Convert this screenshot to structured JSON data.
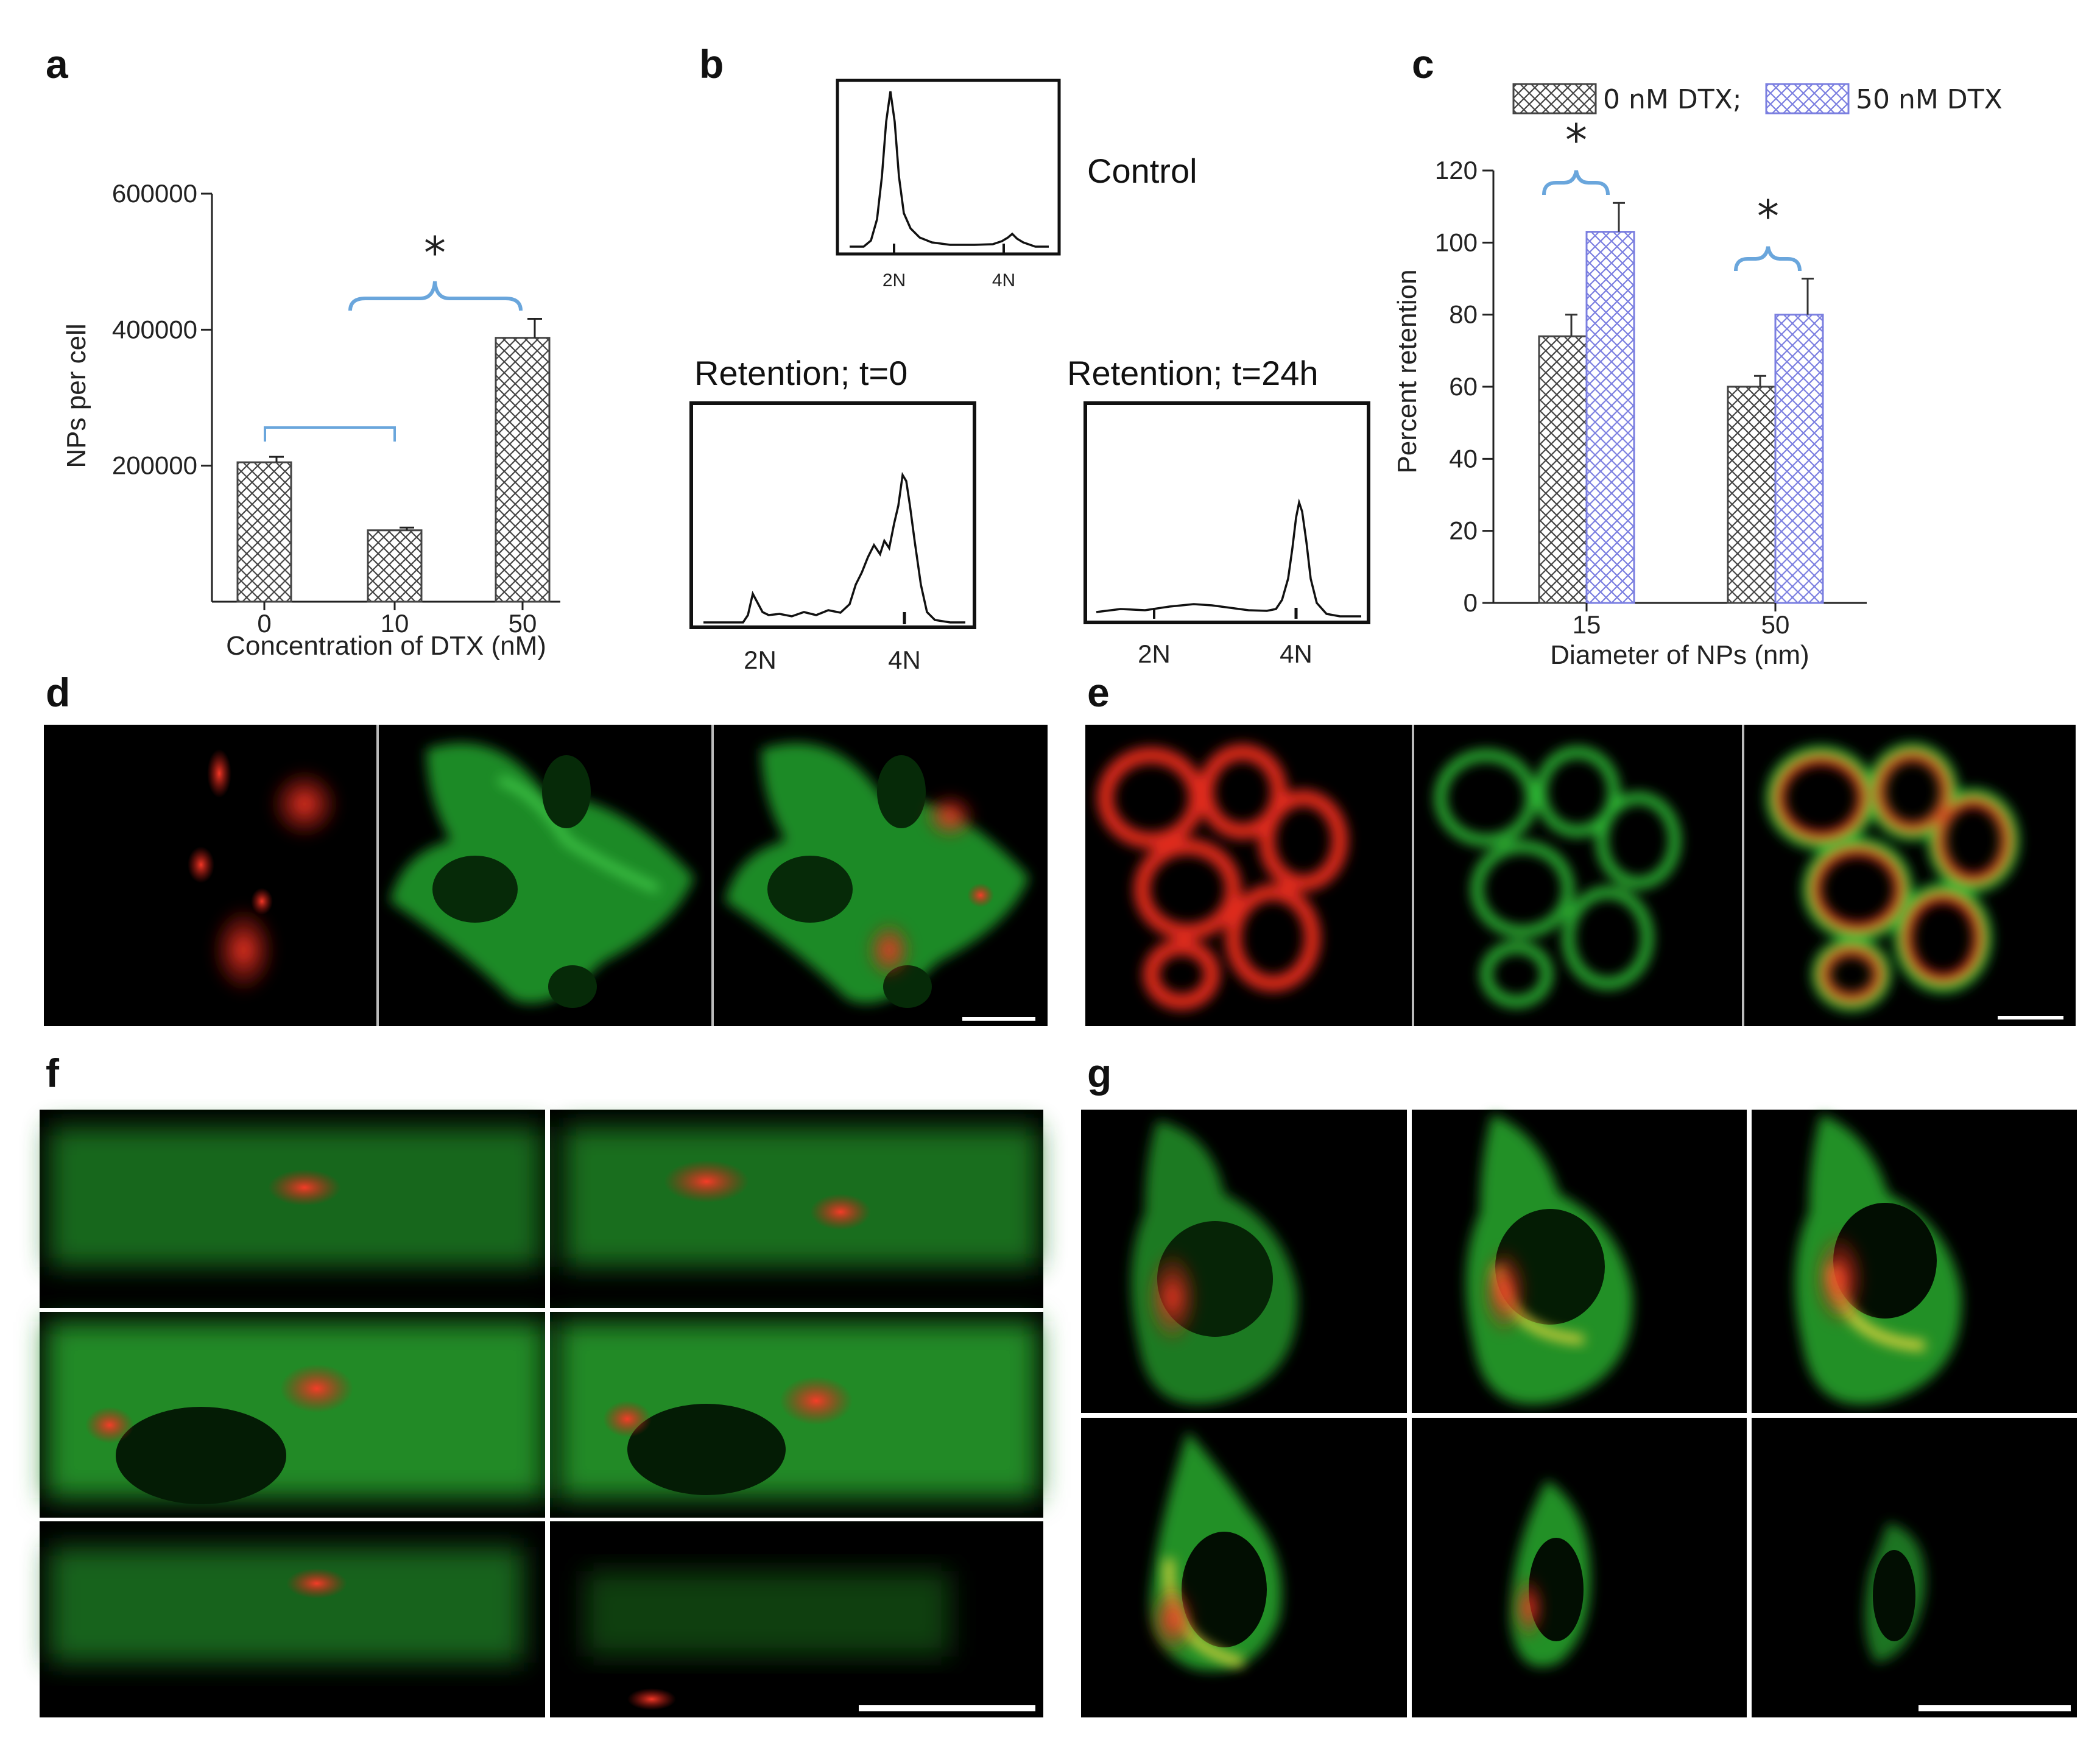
{
  "panel_labels": {
    "a": "a",
    "b": "b",
    "c": "c",
    "d": "d",
    "e": "e",
    "f": "f",
    "g": "g"
  },
  "chart_data": [
    {
      "id": "a",
      "type": "bar",
      "categories": [
        "0",
        "10",
        "50"
      ],
      "values": [
        205000,
        105000,
        388000
      ],
      "errors": [
        8000,
        4000,
        28000
      ],
      "ylabel": "NPs per cell",
      "xlabel": "Concentration of DTX (nM)",
      "yticks": [
        200000,
        400000,
        600000
      ],
      "ytick_labels": [
        "200000",
        "400000",
        "600000"
      ],
      "ylim": [
        0,
        600000
      ],
      "significance": "*",
      "colors": {
        "bar": "#444444",
        "bracket": "#6aa6dc"
      }
    },
    {
      "id": "b",
      "type": "line",
      "histograms": [
        {
          "name": "Control",
          "title": "",
          "xlabels": [
            "2N",
            "4N"
          ]
        },
        {
          "name": "",
          "title": "Retention;  t=0",
          "xlabels": [
            "2N",
            "4N"
          ]
        },
        {
          "name": "",
          "title": "Retention;  t=24h",
          "xlabels": [
            "2N",
            "4N"
          ]
        }
      ]
    },
    {
      "id": "c",
      "type": "bar",
      "categories": [
        "15",
        "50"
      ],
      "series": [
        {
          "name": "0 nM DTX;",
          "values": [
            74,
            60
          ],
          "errors": [
            6,
            3
          ],
          "color": "#444444"
        },
        {
          "name": "50 nM DTX",
          "values": [
            103,
            80
          ],
          "errors": [
            8,
            10
          ],
          "color": "#7b7fe0"
        }
      ],
      "ylabel": "Percent retention",
      "xlabel": "Diameter of NPs (nm)",
      "yticks": [
        0,
        20,
        40,
        60,
        80,
        100,
        120
      ],
      "ylim": [
        0,
        120
      ],
      "significance": "*",
      "legend": "top",
      "colors": {
        "bracket": "#6aa6dc"
      }
    }
  ],
  "micrographs": {
    "colors": {
      "red": "#e0281c",
      "green": "#2fc636"
    },
    "d": {
      "tiles": 3
    },
    "e": {
      "tiles": 3
    },
    "f": {
      "tiles": 6
    },
    "g": {
      "tiles": 6
    }
  }
}
